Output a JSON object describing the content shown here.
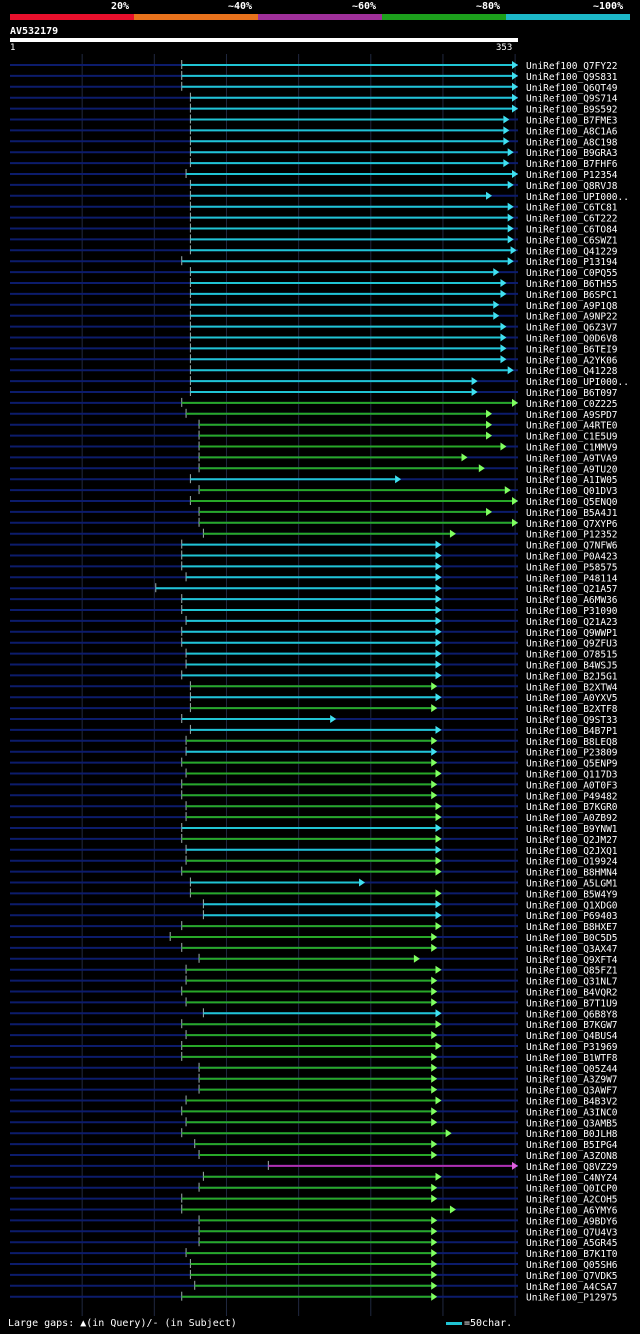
{
  "legend": {
    "bins": [
      {
        "label": "20%",
        "color": "#e8102c"
      },
      {
        "label": "~40%",
        "color": "#e8721c"
      },
      {
        "label": "~60%",
        "color": "#a0309a"
      },
      {
        "label": "~80%",
        "color": "#1ca01c"
      },
      {
        "label": "~100%",
        "color": "#1cb8c8"
      }
    ]
  },
  "query": {
    "id": "AV532179",
    "start": "1",
    "end": "353",
    "length": 353
  },
  "colors": {
    "cyan": "#20c4d4",
    "green": "#28a828",
    "magenta": "#b030b0",
    "track": "#0c1c6c",
    "arrowCyan": "#40e0f0",
    "arrowGreen": "#80ff60",
    "arrowMagenta": "#e060e0",
    "grid": "#202840"
  },
  "footer": {
    "text": "Large gaps: ▲(in Query)/- (in Subject)",
    "scale_text": "=50char."
  },
  "hits": [
    {
      "name": "UniRef100_Q7FY22",
      "s": 120,
      "e": 353,
      "c": "cyan"
    },
    {
      "name": "UniRef100_Q9S831",
      "s": 120,
      "e": 353,
      "c": "cyan"
    },
    {
      "name": "UniRef100_Q6QT49",
      "s": 120,
      "e": 353,
      "c": "cyan"
    },
    {
      "name": "UniRef100_Q9S714",
      "s": 126,
      "e": 353,
      "c": "cyan"
    },
    {
      "name": "UniRef100_B9S592",
      "s": 126,
      "e": 353,
      "c": "cyan"
    },
    {
      "name": "UniRef100_B7FME3",
      "s": 126,
      "e": 347,
      "c": "cyan"
    },
    {
      "name": "UniRef100_A8C1A6",
      "s": 126,
      "e": 347,
      "c": "cyan"
    },
    {
      "name": "UniRef100_A8C198",
      "s": 126,
      "e": 347,
      "c": "cyan"
    },
    {
      "name": "UniRef100_B9GRA3",
      "s": 126,
      "e": 350,
      "c": "cyan"
    },
    {
      "name": "UniRef100_B7FHF6",
      "s": 126,
      "e": 347,
      "c": "cyan"
    },
    {
      "name": "UniRef100_P12354",
      "s": 123,
      "e": 353,
      "c": "cyan"
    },
    {
      "name": "UniRef100_Q8RVJ8",
      "s": 126,
      "e": 350,
      "c": "cyan"
    },
    {
      "name": "UniRef100_UPI000..",
      "s": 126,
      "e": 335,
      "c": "cyan"
    },
    {
      "name": "UniRef100_C6TC81",
      "s": 126,
      "e": 350,
      "c": "cyan"
    },
    {
      "name": "UniRef100_C6T222",
      "s": 126,
      "e": 350,
      "c": "cyan"
    },
    {
      "name": "UniRef100_C6TO84",
      "s": 126,
      "e": 350,
      "c": "cyan"
    },
    {
      "name": "UniRef100_C6SWZ1",
      "s": 126,
      "e": 350,
      "c": "cyan"
    },
    {
      "name": "UniRef100_Q41229",
      "s": 126,
      "e": 352,
      "c": "cyan"
    },
    {
      "name": "UniRef100_P13194",
      "s": 120,
      "e": 350,
      "c": "cyan"
    },
    {
      "name": "UniRef100_C0PQ55",
      "s": 126,
      "e": 340,
      "c": "cyan"
    },
    {
      "name": "UniRef100_B6TH55",
      "s": 126,
      "e": 345,
      "c": "cyan"
    },
    {
      "name": "UniRef100_B6SPC1",
      "s": 126,
      "e": 345,
      "c": "cyan"
    },
    {
      "name": "UniRef100_A9P1Q8",
      "s": 126,
      "e": 340,
      "c": "cyan"
    },
    {
      "name": "UniRef100_A9NP22",
      "s": 126,
      "e": 340,
      "c": "cyan"
    },
    {
      "name": "UniRef100_Q6Z3V7",
      "s": 126,
      "e": 345,
      "c": "cyan"
    },
    {
      "name": "UniRef100_Q0D6V8",
      "s": 126,
      "e": 345,
      "c": "cyan"
    },
    {
      "name": "UniRef100_B6TEI9",
      "s": 126,
      "e": 345,
      "c": "cyan"
    },
    {
      "name": "UniRef100_A2YK06",
      "s": 126,
      "e": 345,
      "c": "cyan"
    },
    {
      "name": "UniRef100_Q41228",
      "s": 126,
      "e": 350,
      "c": "cyan"
    },
    {
      "name": "UniRef100_UPI000..",
      "s": 126,
      "e": 325,
      "c": "cyan"
    },
    {
      "name": "UniRef100_B6T097",
      "s": 126,
      "e": 325,
      "c": "cyan"
    },
    {
      "name": "UniRef100_C0Z225",
      "s": 120,
      "e": 353,
      "c": "green"
    },
    {
      "name": "UniRef100_A9SPD7",
      "s": 123,
      "e": 335,
      "c": "green"
    },
    {
      "name": "UniRef100_A4RTE0",
      "s": 132,
      "e": 335,
      "c": "green"
    },
    {
      "name": "UniRef100_C1E5U9",
      "s": 132,
      "e": 335,
      "c": "green"
    },
    {
      "name": "UniRef100_C1MMV9",
      "s": 132,
      "e": 345,
      "c": "green"
    },
    {
      "name": "UniRef100_A9TVA9",
      "s": 132,
      "e": 318,
      "c": "green"
    },
    {
      "name": "UniRef100_A9TU20",
      "s": 132,
      "e": 330,
      "c": "green"
    },
    {
      "name": "UniRef100_A1IW05",
      "s": 126,
      "e": 272,
      "c": "cyan"
    },
    {
      "name": "UniRef100_Q01DV3",
      "s": 132,
      "e": 348,
      "c": "green"
    },
    {
      "name": "UniRef100_Q5ENQ0",
      "s": 126,
      "e": 353,
      "c": "green"
    },
    {
      "name": "UniRef100_B5A4J1",
      "s": 132,
      "e": 335,
      "c": "green"
    },
    {
      "name": "UniRef100_Q7XYP6",
      "s": 132,
      "e": 353,
      "c": "green"
    },
    {
      "name": "UniRef100_P12352",
      "s": 135,
      "e": 310,
      "c": "green"
    },
    {
      "name": "UniRef100_Q7NFW6",
      "s": 120,
      "e": 300,
      "c": "cyan"
    },
    {
      "name": "UniRef100_P0A423",
      "s": 120,
      "e": 300,
      "c": "cyan"
    },
    {
      "name": "UniRef100_P58575",
      "s": 120,
      "e": 300,
      "c": "cyan"
    },
    {
      "name": "UniRef100_P48114",
      "s": 123,
      "e": 300,
      "c": "cyan"
    },
    {
      "name": "UniRef100_Q21A57",
      "s": 102,
      "e": 300,
      "c": "cyan"
    },
    {
      "name": "UniRef100_A6MW36",
      "s": 120,
      "e": 300,
      "c": "cyan"
    },
    {
      "name": "UniRef100_P31090",
      "s": 120,
      "e": 300,
      "c": "cyan"
    },
    {
      "name": "UniRef100_Q21A23",
      "s": 123,
      "e": 300,
      "c": "cyan"
    },
    {
      "name": "UniRef100_Q9WWP1",
      "s": 120,
      "e": 300,
      "c": "cyan"
    },
    {
      "name": "UniRef100_Q9ZFU3",
      "s": 120,
      "e": 300,
      "c": "cyan"
    },
    {
      "name": "UniRef100_O78515",
      "s": 123,
      "e": 300,
      "c": "cyan"
    },
    {
      "name": "UniRef100_B4WSJ5",
      "s": 123,
      "e": 300,
      "c": "cyan"
    },
    {
      "name": "UniRef100_B2J5G1",
      "s": 120,
      "e": 300,
      "c": "cyan"
    },
    {
      "name": "UniRef100_B2XTW4",
      "s": 126,
      "e": 297,
      "c": "green"
    },
    {
      "name": "UniRef100_A0YXV5",
      "s": 126,
      "e": 300,
      "c": "cyan"
    },
    {
      "name": "UniRef100_B2XTF8",
      "s": 126,
      "e": 297,
      "c": "green"
    },
    {
      "name": "UniRef100_Q9ST33",
      "s": 120,
      "e": 227,
      "c": "cyan"
    },
    {
      "name": "UniRef100_B4B7P1",
      "s": 126,
      "e": 300,
      "c": "cyan"
    },
    {
      "name": "UniRef100_B8LEQ8",
      "s": 123,
      "e": 297,
      "c": "green"
    },
    {
      "name": "UniRef100_P23809",
      "s": 123,
      "e": 297,
      "c": "cyan"
    },
    {
      "name": "UniRef100_Q5ENP9",
      "s": 120,
      "e": 297,
      "c": "green"
    },
    {
      "name": "UniRef100_Q117D3",
      "s": 123,
      "e": 300,
      "c": "green"
    },
    {
      "name": "UniRef100_A0T0F3",
      "s": 120,
      "e": 297,
      "c": "green"
    },
    {
      "name": "UniRef100_P49482",
      "s": 120,
      "e": 297,
      "c": "green"
    },
    {
      "name": "UniRef100_B7KGR0",
      "s": 123,
      "e": 300,
      "c": "green"
    },
    {
      "name": "UniRef100_A0ZB92",
      "s": 123,
      "e": 300,
      "c": "green"
    },
    {
      "name": "UniRef100_B9YNW1",
      "s": 120,
      "e": 300,
      "c": "cyan"
    },
    {
      "name": "UniRef100_Q2JM27",
      "s": 120,
      "e": 300,
      "c": "green"
    },
    {
      "name": "UniRef100_Q2JXQ1",
      "s": 123,
      "e": 300,
      "c": "cyan"
    },
    {
      "name": "UniRef100_O19924",
      "s": 123,
      "e": 300,
      "c": "green"
    },
    {
      "name": "UniRef100_B8HMN4",
      "s": 120,
      "e": 300,
      "c": "green"
    },
    {
      "name": "UniRef100_A5LGM1",
      "s": 126,
      "e": 247,
      "c": "cyan"
    },
    {
      "name": "UniRef100_B5W4Y9",
      "s": 126,
      "e": 300,
      "c": "green"
    },
    {
      "name": "UniRef100_Q1XDG0",
      "s": 135,
      "e": 300,
      "c": "cyan"
    },
    {
      "name": "UniRef100_P69403",
      "s": 135,
      "e": 300,
      "c": "cyan"
    },
    {
      "name": "UniRef100_B8HXE7",
      "s": 120,
      "e": 300,
      "c": "green"
    },
    {
      "name": "UniRef100_B0C5D5",
      "s": 112,
      "e": 297,
      "c": "green"
    },
    {
      "name": "UniRef100_Q3AX47",
      "s": 120,
      "e": 297,
      "c": "green"
    },
    {
      "name": "UniRef100_Q9XFT4",
      "s": 132,
      "e": 285,
      "c": "green"
    },
    {
      "name": "UniRef100_Q85FZ1",
      "s": 123,
      "e": 300,
      "c": "green"
    },
    {
      "name": "UniRef100_Q31NL7",
      "s": 123,
      "e": 297,
      "c": "green"
    },
    {
      "name": "UniRef100_B4VQR2",
      "s": 120,
      "e": 297,
      "c": "green"
    },
    {
      "name": "UniRef100_B7T1U9",
      "s": 123,
      "e": 297,
      "c": "green"
    },
    {
      "name": "UniRef100_Q6B8Y8",
      "s": 135,
      "e": 300,
      "c": "cyan"
    },
    {
      "name": "UniRef100_B7KGW7",
      "s": 120,
      "e": 300,
      "c": "green"
    },
    {
      "name": "UniRef100_Q4BUS4",
      "s": 123,
      "e": 297,
      "c": "green"
    },
    {
      "name": "UniRef100_P31969",
      "s": 120,
      "e": 300,
      "c": "green"
    },
    {
      "name": "UniRef100_B1WTF8",
      "s": 120,
      "e": 297,
      "c": "green"
    },
    {
      "name": "UniRef100_Q05Z44",
      "s": 132,
      "e": 297,
      "c": "green"
    },
    {
      "name": "UniRef100_A3Z9W7",
      "s": 132,
      "e": 297,
      "c": "green"
    },
    {
      "name": "UniRef100_Q3AWF7",
      "s": 132,
      "e": 297,
      "c": "green"
    },
    {
      "name": "UniRef100_B4B3V2",
      "s": 123,
      "e": 300,
      "c": "green"
    },
    {
      "name": "UniRef100_A3INC0",
      "s": 120,
      "e": 297,
      "c": "green"
    },
    {
      "name": "UniRef100_Q3AMB5",
      "s": 123,
      "e": 297,
      "c": "green"
    },
    {
      "name": "UniRef100_B0JLH8",
      "s": 120,
      "e": 307,
      "c": "green"
    },
    {
      "name": "UniRef100_B5IPG4",
      "s": 129,
      "e": 297,
      "c": "green"
    },
    {
      "name": "UniRef100_A3ZON8",
      "s": 132,
      "e": 297,
      "c": "green"
    },
    {
      "name": "UniRef100_Q8VZ29",
      "s": 180,
      "e": 353,
      "c": "magenta"
    },
    {
      "name": "UniRef100_C4NYZ4",
      "s": 135,
      "e": 300,
      "c": "green"
    },
    {
      "name": "UniRef100_Q0ICP0",
      "s": 132,
      "e": 297,
      "c": "green"
    },
    {
      "name": "UniRef100_A2COH5",
      "s": 120,
      "e": 297,
      "c": "green"
    },
    {
      "name": "UniRef100_A6YMY6",
      "s": 120,
      "e": 310,
      "c": "green"
    },
    {
      "name": "UniRef100_A9BDY6",
      "s": 132,
      "e": 297,
      "c": "green"
    },
    {
      "name": "UniRef100_Q7U4V3",
      "s": 132,
      "e": 297,
      "c": "green"
    },
    {
      "name": "UniRef100_A5GR45",
      "s": 132,
      "e": 297,
      "c": "green"
    },
    {
      "name": "UniRef100_B7K1T0",
      "s": 123,
      "e": 297,
      "c": "green"
    },
    {
      "name": "UniRef100_Q05SH6",
      "s": 126,
      "e": 297,
      "c": "green"
    },
    {
      "name": "UniRef100_Q7VDK5",
      "s": 126,
      "e": 297,
      "c": "green"
    },
    {
      "name": "UniRef100_A4CSA7",
      "s": 129,
      "e": 297,
      "c": "green"
    },
    {
      "name": "UniRef100_P12975",
      "s": 120,
      "e": 297,
      "c": "green"
    }
  ]
}
